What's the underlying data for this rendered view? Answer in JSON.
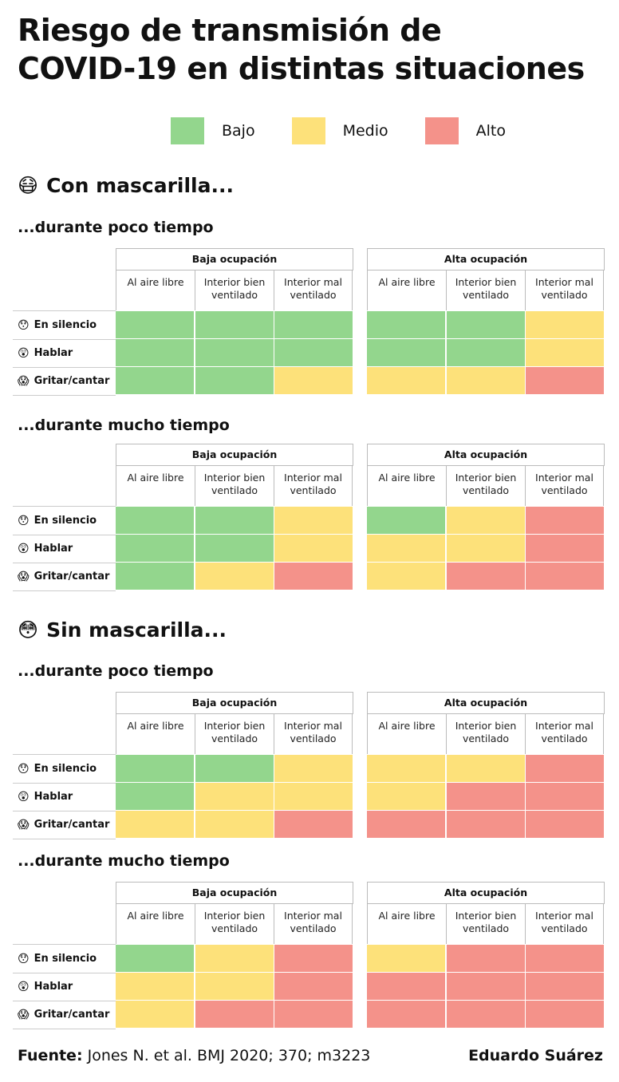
{
  "title_line1": "Riesgo de transmisión de",
  "title_line2": "COVID-19 en distintas situaciones",
  "legend": [
    {
      "label": "Bajo",
      "key": "B",
      "color": "#93d68d"
    },
    {
      "label": "Medio",
      "key": "M",
      "color": "#fde17a"
    },
    {
      "label": "Alto",
      "key": "A",
      "color": "#f4928a"
    }
  ],
  "chart_data": {
    "type": "heatmap",
    "row_labels": [
      {
        "emoji": "😯",
        "label": "En silencio"
      },
      {
        "emoji": "😲",
        "label": "Hablar"
      },
      {
        "emoji": "😱",
        "label": "Gritar/cantar"
      }
    ],
    "groups": [
      "Baja ocupación",
      "Alta ocupación"
    ],
    "columns": [
      "Al aire libre",
      "Interior bien ventilado",
      "Interior mal ventilado"
    ],
    "sections": [
      {
        "emoji": "😷",
        "title": "Con mascarilla...",
        "tables": [
          {
            "subtitle": "...durante poco tiempo",
            "values": [
              [
                "B",
                "B",
                "B",
                "B",
                "B",
                "M"
              ],
              [
                "B",
                "B",
                "B",
                "B",
                "B",
                "M"
              ],
              [
                "B",
                "B",
                "M",
                "M",
                "M",
                "A"
              ]
            ]
          },
          {
            "subtitle": "...durante mucho tiempo",
            "values": [
              [
                "B",
                "B",
                "M",
                "B",
                "M",
                "A"
              ],
              [
                "B",
                "B",
                "M",
                "M",
                "M",
                "A"
              ],
              [
                "B",
                "M",
                "A",
                "M",
                "A",
                "A"
              ]
            ]
          }
        ]
      },
      {
        "emoji": "😳",
        "title": "Sin mascarilla...",
        "tables": [
          {
            "subtitle": "...durante poco tiempo",
            "values": [
              [
                "B",
                "B",
                "M",
                "M",
                "M",
                "A"
              ],
              [
                "B",
                "M",
                "M",
                "M",
                "A",
                "A"
              ],
              [
                "M",
                "M",
                "A",
                "A",
                "A",
                "A"
              ]
            ]
          },
          {
            "subtitle": "...durante mucho tiempo",
            "values": [
              [
                "B",
                "M",
                "A",
                "M",
                "A",
                "A"
              ],
              [
                "M",
                "M",
                "A",
                "A",
                "A",
                "A"
              ],
              [
                "M",
                "A",
                "A",
                "A",
                "A",
                "A"
              ]
            ]
          }
        ]
      }
    ]
  },
  "footer": {
    "source_label": "Fuente:",
    "source_text": " Jones N. et al. BMJ 2020; 370; m3223",
    "author": "Eduardo Suárez"
  }
}
